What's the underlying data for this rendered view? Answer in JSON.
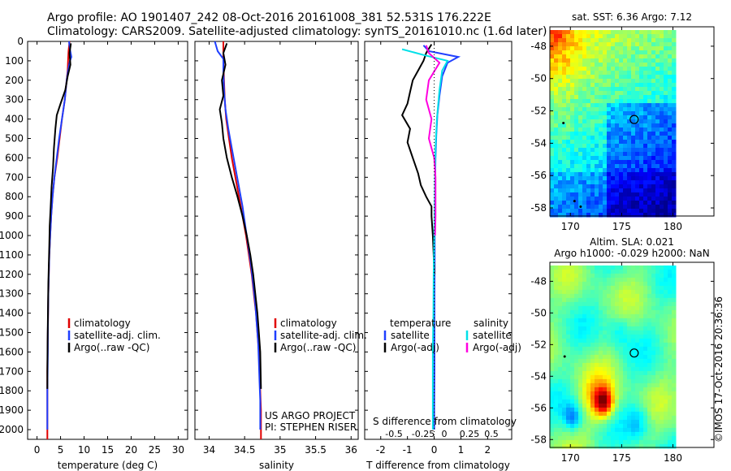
{
  "header": {
    "line1": "Argo profile: AO 1901407_242 08-Oct-2016 20161008_381 52.531S 176.222E",
    "line2": "Climatology: CARS2009. Satellite-adjusted climatology: synTS_20161010.nc (1.6d later)"
  },
  "watermark": "©IMOS 17-Oct-2016 20:36:36",
  "colors": {
    "climatology": "#e00000",
    "satellite": "#1f3fff",
    "argo": "#000000",
    "satellite_salinity": "#00e0e8",
    "argo_salinity": "#ff00e0"
  },
  "chart_data": [
    {
      "type": "line",
      "id": "temperature",
      "xlabel": "temperature (deg C)",
      "ylabel": "",
      "xlim": [
        -2,
        32
      ],
      "ylim": [
        2050,
        0
      ],
      "xticks": [
        0,
        5,
        10,
        15,
        20,
        25,
        30
      ],
      "xtick_labels": [
        "0",
        "5",
        "10",
        "15",
        "20",
        "25",
        "30"
      ],
      "yticks": [
        0,
        100,
        200,
        300,
        400,
        500,
        600,
        700,
        800,
        900,
        1000,
        1100,
        1200,
        1300,
        1400,
        1500,
        1600,
        1700,
        1800,
        1900,
        2000
      ],
      "ytick_labels": [
        "0",
        "100",
        "200",
        "300",
        "400",
        "500",
        "600",
        "700",
        "800",
        "900",
        "1000",
        "1100",
        "1200",
        "1300",
        "1400",
        "1500",
        "1600",
        "1700",
        "1800",
        "1900",
        "2000"
      ],
      "legend": [
        "climatology",
        "satellite-adj. clim.",
        "Argo(..raw -QC)"
      ],
      "series": [
        {
          "name": "climatology",
          "color": "#e00000",
          "x": [
            6.9,
            6.7,
            6.6,
            6.5,
            6.3,
            5.9,
            5.3,
            4.8,
            4.3,
            3.7,
            3.3,
            3.0,
            2.8,
            2.6,
            2.5,
            2.4,
            2.35,
            2.3,
            2.25,
            2.2,
            2.2,
            2.2
          ],
          "y": [
            0,
            50,
            100,
            150,
            200,
            300,
            400,
            500,
            600,
            700,
            800,
            900,
            1000,
            1100,
            1200,
            1300,
            1400,
            1500,
            1600,
            1700,
            1800,
            2050
          ]
        },
        {
          "name": "satellite-adj. clim.",
          "color": "#1f3fff",
          "x": [
            6.8,
            7.0,
            7.3,
            7.0,
            6.6,
            6.3,
            5.9,
            5.3,
            4.7,
            4.2,
            3.7,
            3.3,
            3.0,
            2.8,
            2.6,
            2.5,
            2.4,
            2.35,
            2.3,
            2.3,
            2.25,
            2.2,
            2.2
          ],
          "y": [
            0,
            40,
            80,
            100,
            150,
            200,
            300,
            400,
            500,
            600,
            700,
            800,
            900,
            1000,
            1100,
            1200,
            1300,
            1400,
            1500,
            1600,
            1700,
            1800,
            2000
          ]
        },
        {
          "name": "Argo(..raw -QC)",
          "color": "#000000",
          "x": [
            7.2,
            6.9,
            7.1,
            6.5,
            6.0,
            5.0,
            4.2,
            3.9,
            3.6,
            3.4,
            3.1,
            2.9,
            2.7,
            2.6,
            2.5,
            2.4,
            2.35,
            2.3,
            2.25,
            2.2,
            2.2
          ],
          "y": [
            10,
            60,
            120,
            180,
            250,
            320,
            380,
            450,
            550,
            650,
            750,
            850,
            950,
            1050,
            1150,
            1250,
            1350,
            1450,
            1550,
            1700,
            1790
          ]
        }
      ]
    },
    {
      "type": "line",
      "id": "salinity",
      "xlabel": "salinity",
      "ylabel": "",
      "xlim": [
        33.8,
        36.1
      ],
      "ylim": [
        2050,
        0
      ],
      "xticks": [
        34,
        34.5,
        35,
        35.5,
        36
      ],
      "xtick_labels": [
        "34",
        "34.5",
        "35",
        "35.5",
        "36"
      ],
      "legend": [
        "climatology",
        "satellite-adj. clim.",
        "Argo(..raw -QC)"
      ],
      "annotations": [
        "US ARGO PROJECT",
        "PI: STEPHEN RISER"
      ],
      "series": [
        {
          "name": "climatology",
          "color": "#e00000",
          "x": [
            34.2,
            34.2,
            34.21,
            34.22,
            34.24,
            34.28,
            34.32,
            34.37,
            34.42,
            34.47,
            34.52,
            34.56,
            34.6,
            34.63,
            34.66,
            34.68,
            34.7,
            34.71,
            34.72,
            34.73,
            34.73,
            34.73
          ],
          "y": [
            0,
            100,
            200,
            300,
            400,
            500,
            600,
            700,
            800,
            900,
            1000,
            1100,
            1200,
            1300,
            1400,
            1500,
            1600,
            1700,
            1800,
            1900,
            2000,
            2050
          ]
        },
        {
          "name": "satellite-adj. clim.",
          "color": "#1f3fff",
          "x": [
            34.08,
            34.12,
            34.2,
            34.2,
            34.21,
            34.23,
            34.27,
            34.32,
            34.37,
            34.42,
            34.47,
            34.51,
            34.55,
            34.59,
            34.62,
            34.65,
            34.67,
            34.69,
            34.7,
            34.71,
            34.72,
            34.72
          ],
          "y": [
            0,
            50,
            90,
            150,
            250,
            350,
            450,
            550,
            650,
            750,
            850,
            950,
            1050,
            1150,
            1250,
            1350,
            1450,
            1550,
            1650,
            1750,
            1850,
            2000
          ]
        },
        {
          "name": "Argo(..raw -QC)",
          "color": "#000000",
          "x": [
            34.25,
            34.2,
            34.23,
            34.18,
            34.2,
            34.15,
            34.18,
            34.2,
            34.25,
            34.32,
            34.4,
            34.47,
            34.53,
            34.58,
            34.62,
            34.65,
            34.68,
            34.7,
            34.72,
            34.73
          ],
          "y": [
            10,
            60,
            120,
            200,
            280,
            350,
            420,
            500,
            600,
            700,
            800,
            900,
            1000,
            1100,
            1200,
            1300,
            1400,
            1500,
            1600,
            1790
          ]
        }
      ]
    },
    {
      "type": "line",
      "id": "difference",
      "xlabel": "T difference from climatology",
      "xlabel_top": "S difference from climatology",
      "xlim": [
        -2.6,
        2.9
      ],
      "ylim": [
        2050,
        0
      ],
      "xticks": [
        -2,
        -1,
        0,
        1,
        2
      ],
      "xtick_labels": [
        "-2",
        "-1",
        "0",
        "1",
        "2"
      ],
      "sticks": [
        "-0.5",
        "-0.25",
        "0",
        "0.25",
        "0.5"
      ],
      "legend": {
        "temperature_title": "temperature",
        "salinity_title": "salinity",
        "temperature": [
          "satellite",
          "Argo(-adj)"
        ],
        "salinity": [
          "satellite",
          "Argo(-adj)"
        ]
      },
      "series": [
        {
          "name": "temperature satellite",
          "color": "#1f3fff",
          "x": [
            -0.4,
            -0.2,
            0.9,
            0.5,
            0.3,
            0.2,
            0.12,
            0.08,
            0.05,
            0.03,
            0.02,
            0.02,
            0.01,
            0.01,
            0.01,
            0.0,
            0.0
          ],
          "y": [
            20,
            50,
            80,
            110,
            180,
            280,
            380,
            480,
            600,
            750,
            900,
            1100,
            1300,
            1500,
            1700,
            1900,
            2000
          ]
        },
        {
          "name": "temperature Argo(-adj)",
          "color": "#000000",
          "x": [
            -0.1,
            -0.3,
            -0.4,
            -0.6,
            -0.8,
            -0.9,
            -1.0,
            -1.2,
            -0.9,
            -1.0,
            -0.8,
            -0.6,
            -0.5,
            -0.3,
            -0.1,
            -0.1,
            -0.05,
            -0.02,
            0.0
          ],
          "y": [
            15,
            60,
            100,
            150,
            200,
            260,
            320,
            380,
            450,
            520,
            600,
            680,
            740,
            800,
            850,
            900,
            1000,
            1100,
            1200
          ]
        },
        {
          "name": "salinity satellite",
          "color": "#00e0e8",
          "x": [
            -1.2,
            -0.4,
            0.5,
            0.3,
            0.2,
            0.1,
            0.05,
            0.03,
            0.02,
            0.0,
            -0.02,
            -0.03,
            -0.05,
            -0.05,
            -0.05
          ],
          "y": [
            40,
            70,
            100,
            150,
            250,
            400,
            550,
            700,
            850,
            1000,
            1200,
            1400,
            1600,
            1800,
            2000
          ]
        },
        {
          "name": "salinity Argo(-adj)",
          "color": "#ff00e0",
          "x": [
            -0.3,
            -0.2,
            0.2,
            -0.2,
            -0.3,
            -0.1,
            -0.2,
            0.0,
            0.05,
            0.05,
            0.05,
            0.03
          ],
          "y": [
            20,
            60,
            110,
            200,
            300,
            400,
            500,
            600,
            700,
            800,
            900,
            1000
          ]
        }
      ]
    },
    {
      "type": "heatmap",
      "id": "sst-map",
      "title": "sat. SST: 6.36 Argo: 7.12",
      "xlim": [
        168,
        184
      ],
      "ylim": [
        -58.5,
        -46.8
      ],
      "xticks": [
        170,
        175,
        180
      ],
      "xtick_labels": [
        "170",
        "175",
        "180"
      ],
      "yticks": [
        -48,
        -50,
        -52,
        -54,
        -56,
        -58
      ],
      "ytick_labels": [
        "-48",
        "-50",
        "-52",
        "-54",
        "-56",
        "-58"
      ],
      "data_extent": {
        "lon": [
          168,
          180
        ],
        "lat": [
          -58.5,
          -47
        ]
      },
      "argo_position": {
        "lon": 176.222,
        "lat": -52.531
      }
    },
    {
      "type": "heatmap",
      "id": "sla-map",
      "title_line1": "Altim. SLA: 0.021",
      "title_line2": "Argo h1000: -0.029 h2000: NaN",
      "xlim": [
        168,
        184
      ],
      "ylim": [
        -58.5,
        -46.8
      ],
      "xticks": [
        170,
        175,
        180
      ],
      "xtick_labels": [
        "170",
        "175",
        "180"
      ],
      "yticks": [
        -48,
        -50,
        -52,
        -54,
        -56,
        -58
      ],
      "ytick_labels": [
        "-48",
        "-50",
        "-52",
        "-54",
        "-56",
        "-58"
      ],
      "data_extent": {
        "lon": [
          168,
          180
        ],
        "lat": [
          -58.5,
          -47
        ]
      },
      "argo_position": {
        "lon": 176.222,
        "lat": -52.531
      }
    }
  ]
}
